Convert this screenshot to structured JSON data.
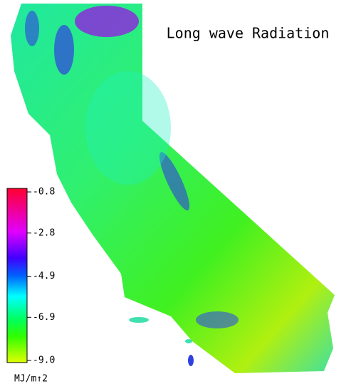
{
  "title": "Long wave Radiation",
  "colorbar": {
    "lim": [
      -9.0,
      -0.8
    ],
    "ticks": [
      -0.8,
      -2.8,
      -4.9,
      -6.9,
      {
        "value": -9.0,
        "label": "-9.0"
      }
    ],
    "unit": "MJ/m↑2"
  }
}
